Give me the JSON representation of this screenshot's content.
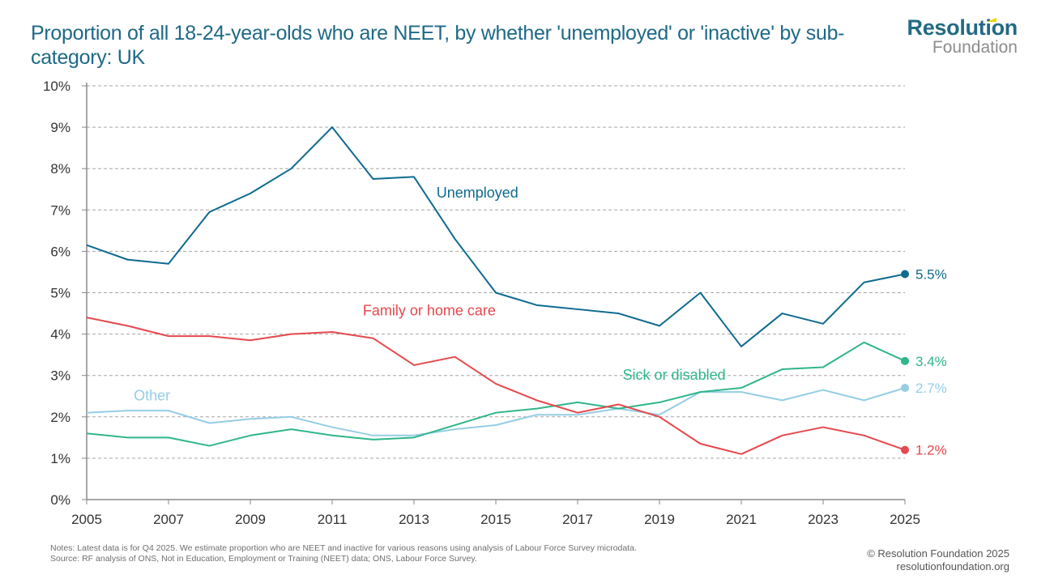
{
  "header": {
    "title": "Proportion of all 18-24-year-olds who are NEET, by whether 'unemployed' or 'inactive' by sub-category: UK",
    "logo_top": "Resolution",
    "logo_bottom": "Foundation"
  },
  "footer": {
    "notes": "Notes: Latest data is for Q4 2025. We estimate proportion who are NEET and inactive for various reasons using analysis of Labour Force Survey microdata.",
    "source": "Source: RF analysis of ONS, Not in Education, Employment or Training (NEET) data; ONS, Labour Force Survey.",
    "copyright": "© Resolution Foundation 2025",
    "website": "resolutionfoundation.org"
  },
  "chart_data": {
    "type": "line",
    "title": "Proportion of all 18-24-year-olds who are NEET, by whether 'unemployed' or 'inactive' by sub-category: UK",
    "xlabel": "",
    "ylabel": "",
    "x": [
      2005,
      2006,
      2007,
      2008,
      2009,
      2010,
      2011,
      2012,
      2013,
      2014,
      2015,
      2016,
      2017,
      2018,
      2019,
      2020,
      2021,
      2022,
      2023,
      2024,
      2025
    ],
    "x_ticks": [
      "2005",
      "2007",
      "2009",
      "2011",
      "2013",
      "2015",
      "2017",
      "2019",
      "2021",
      "2023",
      "2025"
    ],
    "y_ticks": [
      "0%",
      "1%",
      "2%",
      "3%",
      "4%",
      "5%",
      "6%",
      "7%",
      "8%",
      "9%",
      "10%"
    ],
    "ylim": [
      0,
      10
    ],
    "xlim": [
      2005,
      2025
    ],
    "grid": "horizontal dashed",
    "legend": "inline labels",
    "series": [
      {
        "name": "Unemployed",
        "color": "#0f6a8f",
        "end_label": "5.5%",
        "values": [
          6.15,
          5.8,
          5.7,
          6.95,
          7.4,
          8.0,
          9.0,
          7.75,
          7.8,
          6.3,
          5.0,
          4.7,
          4.6,
          4.5,
          4.2,
          5.0,
          3.7,
          4.5,
          4.25,
          5.25,
          5.45
        ]
      },
      {
        "name": "Family or home care",
        "color": "#e5484d",
        "end_label": "1.2%",
        "values": [
          4.4,
          4.2,
          3.95,
          3.95,
          3.85,
          4.0,
          4.05,
          3.9,
          3.25,
          3.45,
          2.8,
          2.4,
          2.1,
          2.3,
          2.0,
          1.35,
          1.1,
          1.55,
          1.75,
          1.55,
          1.2
        ]
      },
      {
        "name": "Sick or disabled",
        "color": "#2fb68a",
        "end_label": "3.4%",
        "values": [
          1.6,
          1.5,
          1.5,
          1.3,
          1.55,
          1.7,
          1.55,
          1.45,
          1.5,
          1.8,
          2.1,
          2.2,
          2.35,
          2.2,
          2.35,
          2.6,
          2.7,
          3.15,
          3.2,
          3.8,
          3.35
        ]
      },
      {
        "name": "Other",
        "color": "#95cde5",
        "end_label": "2.7%",
        "values": [
          2.1,
          2.15,
          2.15,
          1.85,
          1.95,
          2.0,
          1.75,
          1.55,
          1.55,
          1.7,
          1.8,
          2.05,
          2.05,
          2.2,
          2.05,
          2.6,
          2.6,
          2.4,
          2.65,
          2.4,
          2.7
        ]
      }
    ]
  }
}
